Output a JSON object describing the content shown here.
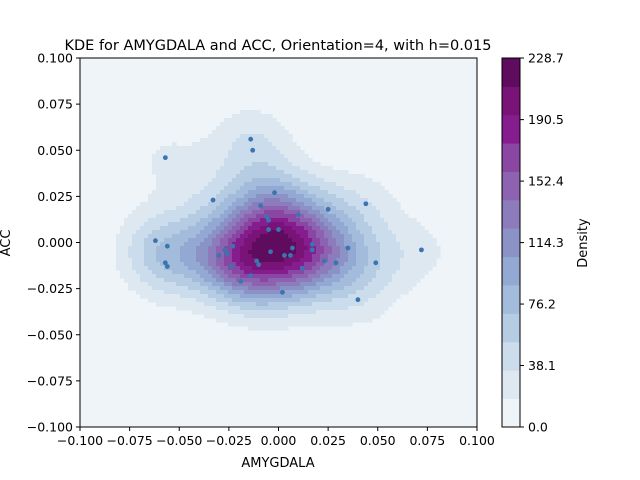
{
  "chart_data": {
    "type": "contour",
    "title": "KDE for AMYGDALA and ACC, Orientation=4, with h=0.015",
    "xlabel": "AMYGDALA",
    "ylabel": "ACC",
    "xlim": [
      -0.1,
      0.1
    ],
    "ylim": [
      -0.1,
      0.1
    ],
    "xticks": [
      -0.1,
      -0.075,
      -0.05,
      -0.025,
      0.0,
      0.025,
      0.05,
      0.075,
      0.1
    ],
    "xtick_labels": [
      "−0.100",
      "−0.075",
      "−0.050",
      "−0.025",
      "0.000",
      "0.025",
      "0.050",
      "0.075",
      "0.100"
    ],
    "yticks": [
      -0.1,
      -0.075,
      -0.05,
      -0.025,
      0.0,
      0.025,
      0.05,
      0.075,
      0.1
    ],
    "ytick_labels": [
      "−0.100",
      "−0.075",
      "−0.050",
      "−0.025",
      "0.000",
      "0.025",
      "0.050",
      "0.075",
      "0.100"
    ],
    "colorbar": {
      "label": "Density",
      "min": 0.0,
      "max": 228.7,
      "ticks": [
        0.0,
        38.1,
        76.2,
        114.3,
        152.4,
        190.5,
        228.7
      ],
      "tick_labels": [
        "0.0",
        "38.1",
        "76.2",
        "114.3",
        "152.4",
        "190.5",
        "228.7"
      ],
      "colors": [
        "#eef4f8",
        "#dde8f1",
        "#cbdcec",
        "#b6cce3",
        "#a3bcdb",
        "#93a8d2",
        "#8b93c6",
        "#8c7cbc",
        "#8d63b1",
        "#8a46a3",
        "#851d8e",
        "#791378",
        "#5f0b5e"
      ]
    },
    "points": [
      [
        -0.057,
        0.046
      ],
      [
        -0.014,
        0.056
      ],
      [
        -0.013,
        0.05
      ],
      [
        -0.033,
        0.023
      ],
      [
        -0.002,
        0.027
      ],
      [
        -0.009,
        0.02
      ],
      [
        0.025,
        0.018
      ],
      [
        0.044,
        0.021
      ],
      [
        -0.006,
        0.014
      ],
      [
        -0.005,
        0.012
      ],
      [
        0.01,
        0.015
      ],
      [
        -0.005,
        0.007
      ],
      [
        0.0,
        0.007
      ],
      [
        -0.062,
        0.001
      ],
      [
        -0.056,
        -0.002
      ],
      [
        -0.023,
        -0.002
      ],
      [
        -0.057,
        -0.011
      ],
      [
        -0.056,
        -0.013
      ],
      [
        -0.026,
        -0.006
      ],
      [
        -0.027,
        -0.004
      ],
      [
        -0.03,
        -0.007
      ],
      [
        -0.004,
        -0.005
      ],
      [
        0.003,
        -0.007
      ],
      [
        0.007,
        -0.003
      ],
      [
        -0.011,
        -0.01
      ],
      [
        -0.01,
        -0.012
      ],
      [
        -0.024,
        -0.013
      ],
      [
        0.017,
        -0.001
      ],
      [
        0.017,
        -0.004
      ],
      [
        0.023,
        -0.01
      ],
      [
        0.029,
        -0.011
      ],
      [
        0.035,
        -0.003
      ],
      [
        0.049,
        -0.011
      ],
      [
        0.072,
        -0.004
      ],
      [
        -0.019,
        -0.021
      ],
      [
        0.002,
        -0.027
      ],
      [
        0.04,
        -0.031
      ],
      [
        0.006,
        -0.007
      ],
      [
        0.012,
        -0.014
      ],
      [
        -0.014,
        -0.018
      ]
    ],
    "point_color": "#3b75af",
    "grid": false,
    "legend": "none"
  }
}
